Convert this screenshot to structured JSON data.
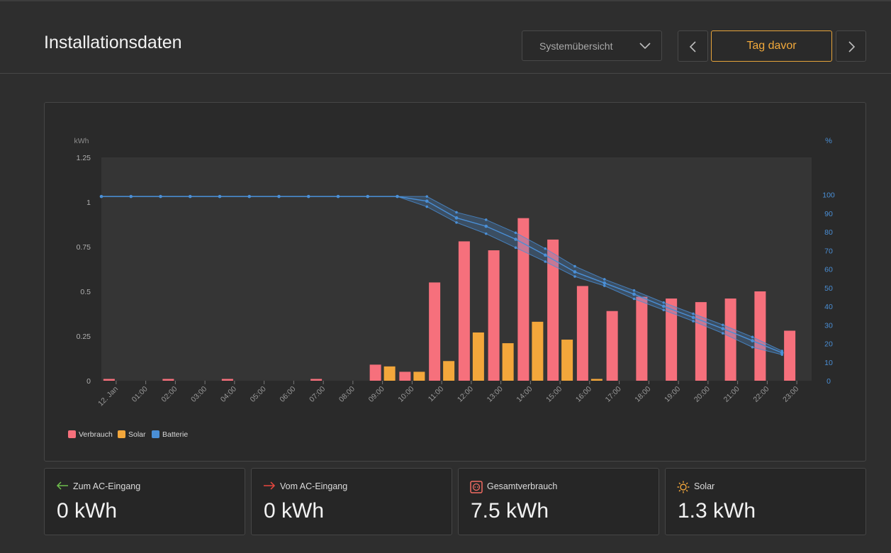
{
  "header": {
    "title": "Installationsdaten",
    "view_select": "Systemübersicht",
    "day_button": "Tag davor"
  },
  "colors": {
    "consumption": "#f6707c",
    "solar": "#f3a73b",
    "battery": "#4a8fd6",
    "accent": "#f2a93b"
  },
  "icons": {
    "select": "chevron-down-icon",
    "prev": "chevron-left-icon",
    "next": "chevron-right-icon",
    "to_ac": "arrow-left-icon",
    "from_ac": "arrow-right-icon",
    "consumption": "socket-icon",
    "solar": "sun-icon"
  },
  "chart_data": {
    "type": "bar",
    "left_unit": "kWh",
    "right_unit": "%",
    "ylim": [
      0,
      1.25
    ],
    "y2lim": [
      0,
      120
    ],
    "yticks": [
      "0",
      "0.25",
      "0.5",
      "0.75",
      "1",
      "1.25"
    ],
    "y2ticks": [
      "0",
      "10",
      "20",
      "30",
      "40",
      "50",
      "60",
      "70",
      "80",
      "90",
      "100"
    ],
    "categories": [
      "12. Jan",
      "01:00",
      "02:00",
      "03:00",
      "04:00",
      "05:00",
      "06:00",
      "07:00",
      "08:00",
      "09:00",
      "10:00",
      "11:00",
      "12:00",
      "13:00",
      "14:00",
      "15:00",
      "16:00",
      "17:00",
      "18:00",
      "19:00",
      "20:00",
      "21:00",
      "22:00",
      "23:00"
    ],
    "series": [
      {
        "name": "Verbrauch",
        "kind": "bar",
        "axis": "left",
        "values": [
          0.01,
          0,
          0.01,
          0,
          0.01,
          0,
          0,
          0.01,
          0,
          0.09,
          0.05,
          0.55,
          0.78,
          0.73,
          0.91,
          0.79,
          0.53,
          0.39,
          0.47,
          0.46,
          0.44,
          0.46,
          0.5,
          0.28
        ]
      },
      {
        "name": "Solar",
        "kind": "bar",
        "axis": "left",
        "values": [
          0,
          0,
          0,
          0,
          0,
          0,
          0,
          0,
          0,
          0.08,
          0.05,
          0.11,
          0.27,
          0.21,
          0.33,
          0.23,
          0.01,
          0,
          0,
          0,
          0,
          0,
          0,
          0
        ]
      },
      {
        "name": "Batterie",
        "kind": "line",
        "axis": "right",
        "values": [
          99,
          99,
          99,
          99,
          99,
          99,
          99,
          99,
          99,
          99,
          99,
          96.5,
          87.5,
          83,
          76,
          67.5,
          58.5,
          52.5,
          46.5,
          40,
          34,
          28,
          21.5,
          15
        ],
        "min": [
          99,
          99,
          99,
          99,
          99,
          99,
          99,
          99,
          99,
          99,
          99,
          93.5,
          85,
          79,
          71.5,
          64,
          56,
          51,
          44,
          38,
          32,
          25.5,
          18,
          14
        ],
        "max": [
          99,
          99,
          99,
          99,
          99,
          99,
          99,
          99,
          99,
          99,
          99,
          99,
          90.5,
          86.5,
          79.5,
          71,
          61.5,
          54.5,
          48.5,
          42,
          36,
          30,
          23.5,
          16
        ]
      }
    ],
    "legend_position": "bottom-left",
    "grid": false
  },
  "cards": [
    {
      "label": "Zum AC-Eingang",
      "value": "0 kWh"
    },
    {
      "label": "Vom AC-Eingang",
      "value": "0 kWh"
    },
    {
      "label": "Gesamtverbrauch",
      "value": "7.5 kWh"
    },
    {
      "label": "Solar",
      "value": "1.3 kWh"
    }
  ]
}
